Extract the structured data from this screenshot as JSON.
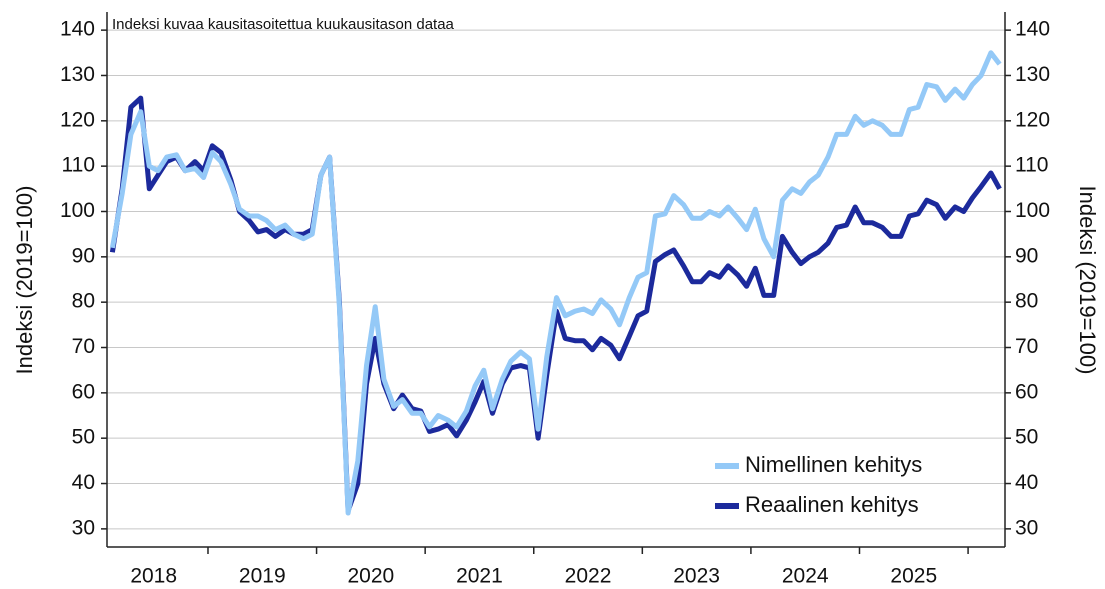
{
  "chart_data": {
    "type": "line",
    "annotation": "Indeksi kuvaa kausitasoitettua kuukausitason dataa",
    "ylabel": "Indeksi (2019=100)",
    "y2label": "Indeksi (2019=100)",
    "year_labels": [
      "2018",
      "2019",
      "2020",
      "2021",
      "2022",
      "2023",
      "2024",
      "2025"
    ],
    "xlim": [
      2018.07,
      2026.34
    ],
    "ylim": [
      26,
      144
    ],
    "yticks": [
      30,
      40,
      50,
      60,
      70,
      80,
      90,
      100,
      110,
      120,
      130,
      140
    ],
    "y2lim": [
      26,
      144
    ],
    "y2ticks": [
      30,
      40,
      50,
      60,
      70,
      80,
      90,
      100,
      110,
      120,
      130,
      140
    ],
    "grid": true,
    "legend": "lower right",
    "x": [
      2018.12,
      2018.21,
      2018.29,
      2018.38,
      2018.46,
      2018.54,
      2018.62,
      2018.71,
      2018.79,
      2018.88,
      2018.96,
      2019.04,
      2019.12,
      2019.21,
      2019.29,
      2019.38,
      2019.46,
      2019.54,
      2019.62,
      2019.71,
      2019.79,
      2019.88,
      2019.96,
      2020.04,
      2020.12,
      2020.21,
      2020.29,
      2020.38,
      2020.46,
      2020.54,
      2020.62,
      2020.71,
      2020.79,
      2020.88,
      2020.96,
      2021.04,
      2021.12,
      2021.21,
      2021.29,
      2021.38,
      2021.46,
      2021.54,
      2021.62,
      2021.71,
      2021.79,
      2021.88,
      2021.96,
      2022.04,
      2022.12,
      2022.21,
      2022.29,
      2022.38,
      2022.46,
      2022.54,
      2022.62,
      2022.71,
      2022.79,
      2022.88,
      2022.96,
      2023.04,
      2023.12,
      2023.21,
      2023.29,
      2023.38,
      2023.46,
      2023.54,
      2023.62,
      2023.71,
      2023.79,
      2023.88,
      2023.96,
      2024.04,
      2024.12,
      2024.21,
      2024.29,
      2024.38,
      2024.46,
      2024.54,
      2024.62,
      2024.71,
      2024.79,
      2024.88,
      2024.96,
      2025.04,
      2025.12,
      2025.21,
      2025.29,
      2025.38,
      2025.46,
      2025.54,
      2025.62,
      2025.71,
      2025.79,
      2025.88,
      2025.96,
      2026.04,
      2026.12,
      2026.21,
      2026.29
    ],
    "series": [
      {
        "name": "Nimellinen kehitys",
        "color": "#94c9f7",
        "values": [
          92,
          104,
          117,
          122,
          110,
          109,
          112,
          112.5,
          109,
          109.5,
          107.5,
          113,
          111,
          106,
          100.5,
          99,
          99,
          98,
          96,
          97,
          95,
          94,
          95,
          108,
          112,
          79,
          33.5,
          45,
          66,
          79,
          63,
          57,
          58.5,
          55.5,
          55.5,
          52.5,
          55,
          54,
          52.5,
          56,
          61.5,
          65,
          56.5,
          63,
          67,
          69,
          67.5,
          52,
          68,
          81,
          77,
          78,
          78.5,
          77.5,
          80.5,
          78.5,
          75,
          81,
          85.5,
          86.5,
          99,
          99.5,
          103.5,
          101.5,
          98.5,
          98.5,
          100,
          99,
          101,
          98.5,
          96,
          100.5,
          94,
          90,
          102.5,
          105,
          104,
          106.5,
          108,
          112,
          117,
          117,
          121,
          119,
          120,
          119,
          117,
          117,
          122.5,
          123,
          128,
          127.5,
          124.5,
          127,
          125,
          128,
          130,
          135,
          132.5
        ]
      },
      {
        "name": "Reaalinen kehitys",
        "color": "#1c2a9c",
        "values": [
          91,
          105,
          123,
          125,
          105,
          108,
          111,
          112,
          109,
          111,
          109,
          114.5,
          113,
          107,
          100,
          98,
          95.5,
          96,
          94.5,
          96,
          95,
          95,
          96,
          108,
          112,
          80,
          34,
          40,
          62,
          72,
          62,
          56.5,
          59.5,
          56.5,
          56,
          51.5,
          52,
          53,
          50.5,
          54,
          58,
          62.5,
          55.5,
          62,
          65.5,
          66,
          65.5,
          50,
          64,
          78,
          72,
          71.5,
          71.5,
          69.5,
          72,
          70.5,
          67.5,
          72.5,
          77,
          78,
          89,
          90.5,
          91.5,
          88,
          84.5,
          84.5,
          86.5,
          85.5,
          88,
          86,
          83.5,
          87.5,
          81.5,
          81.5,
          94.5,
          91,
          88.5,
          90,
          91,
          93,
          96.5,
          97,
          101,
          97.5,
          97.5,
          96.5,
          94.5,
          94.5,
          99,
          99.5,
          102.5,
          101.5,
          98.5,
          101,
          100,
          103,
          105.5,
          108.5,
          105
        ]
      }
    ]
  }
}
